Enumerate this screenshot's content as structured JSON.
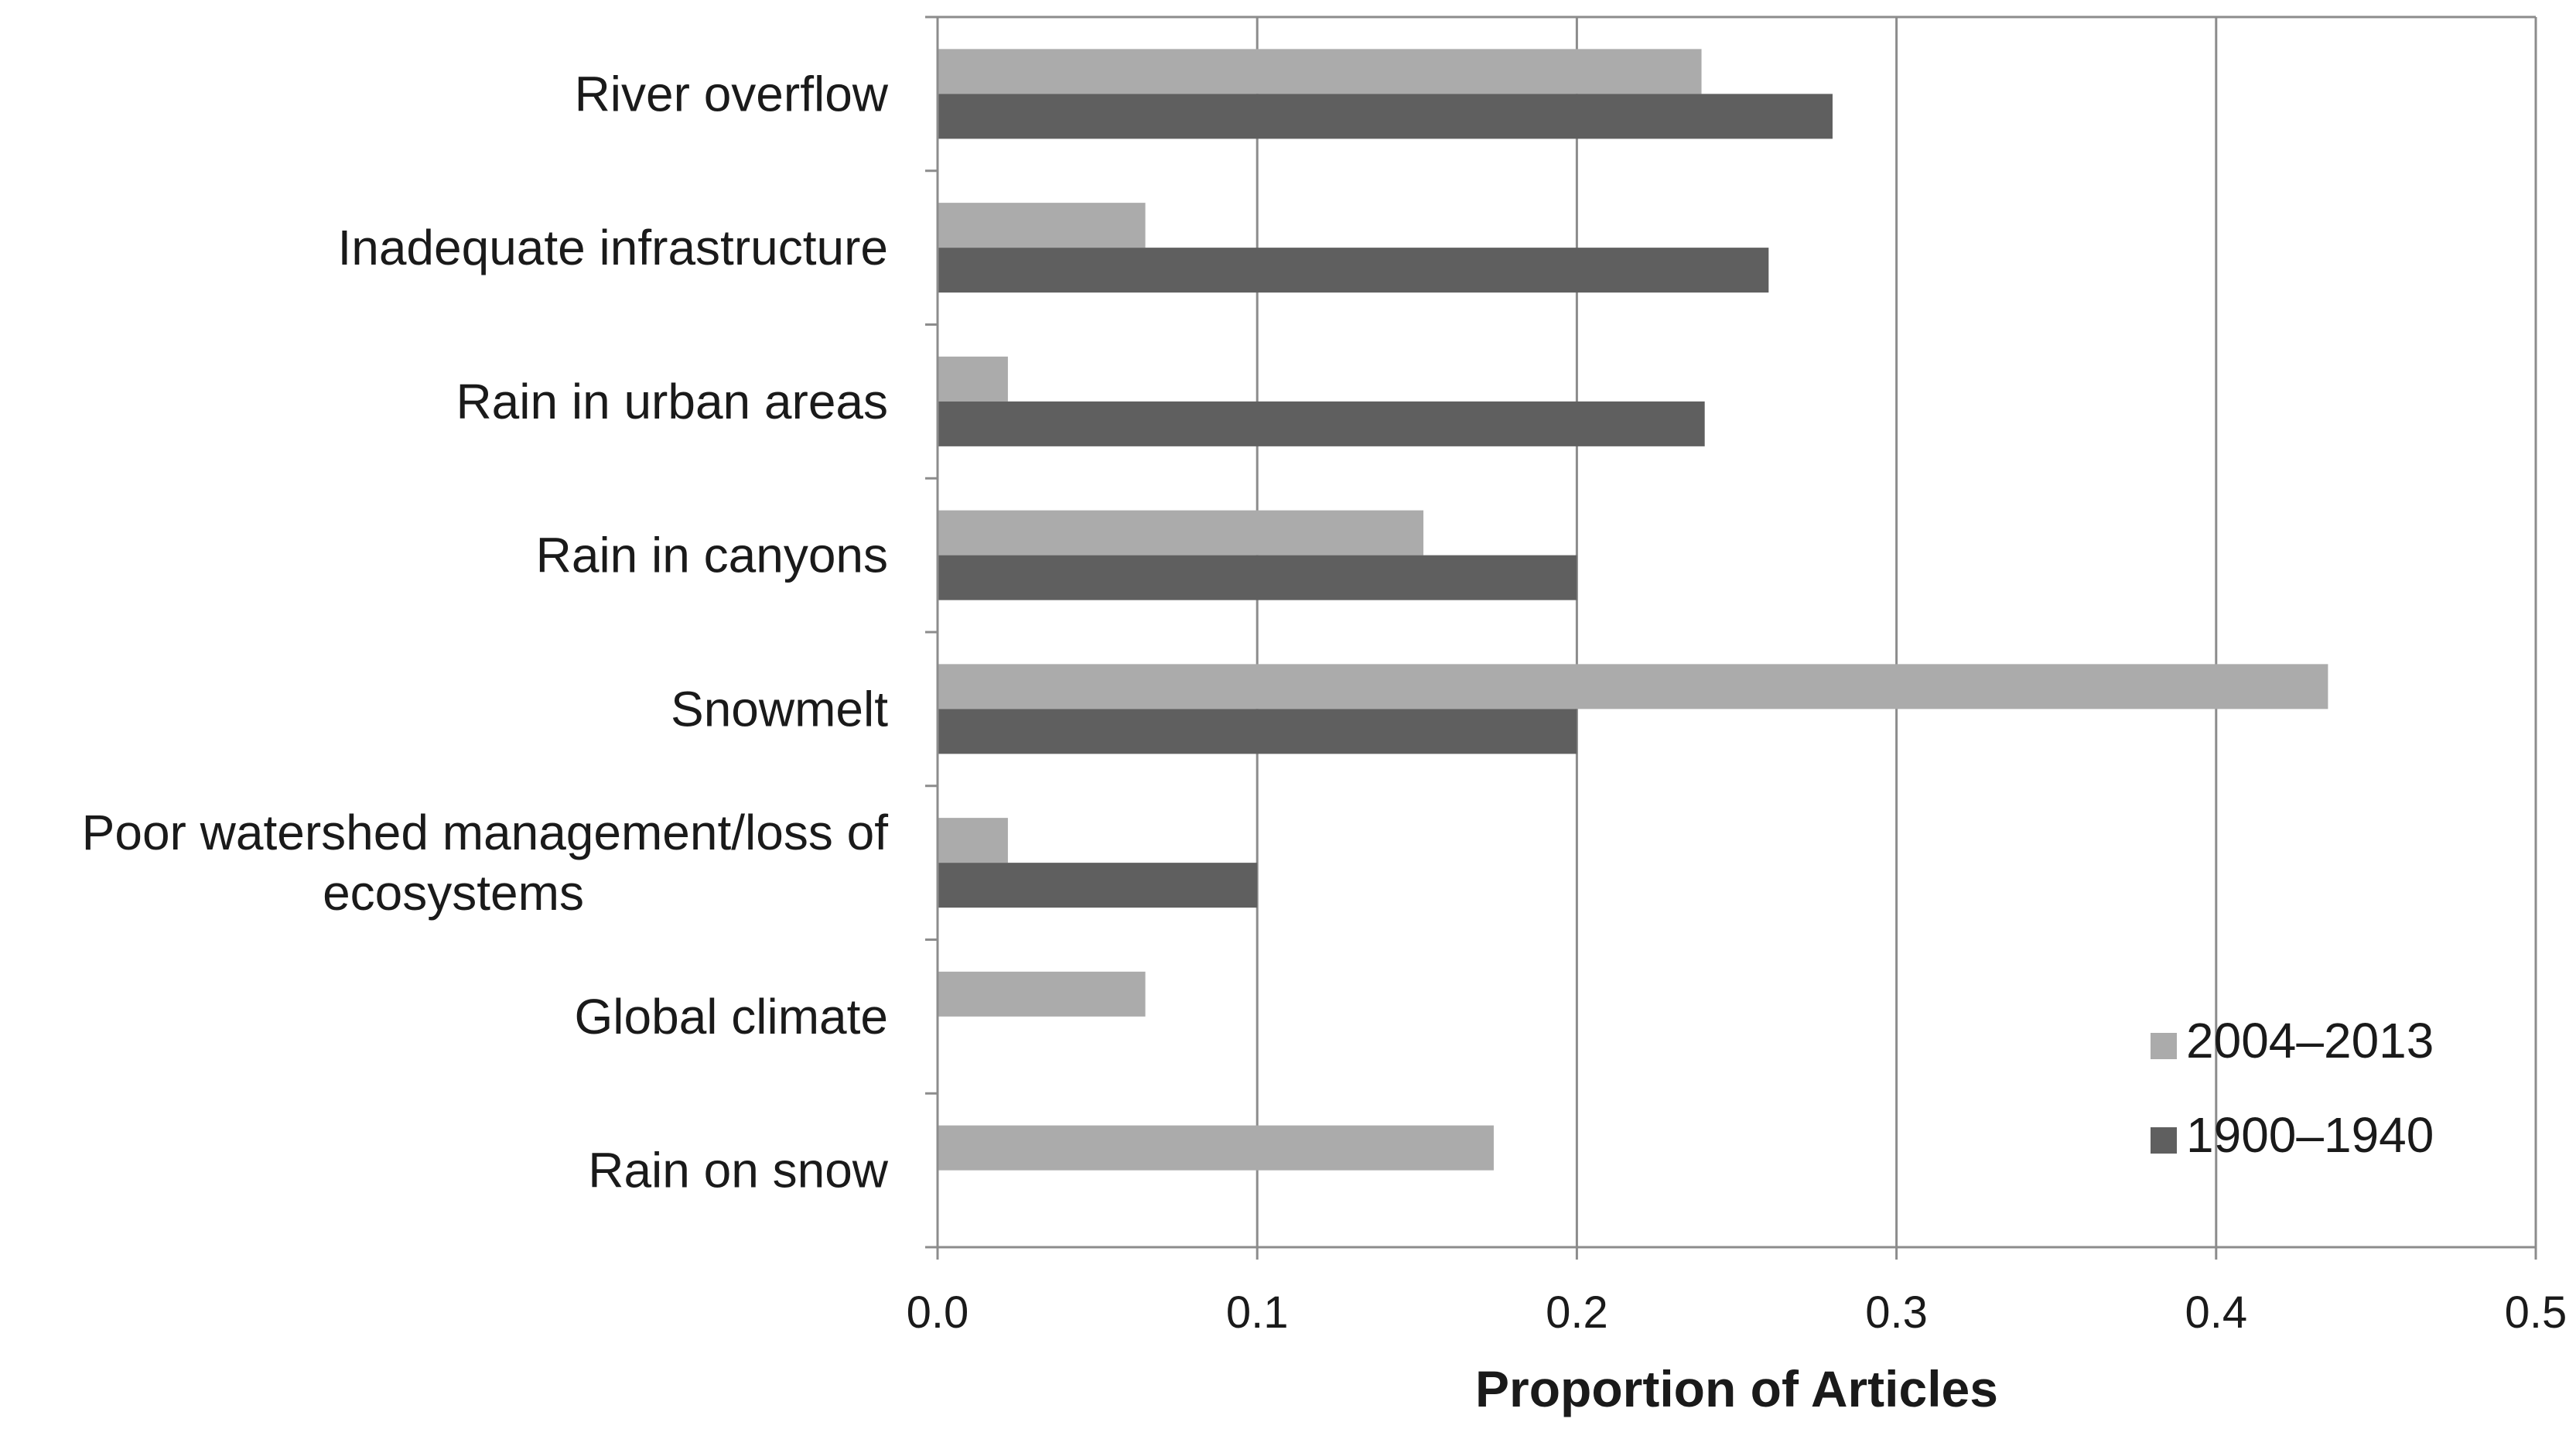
{
  "chart_data": {
    "type": "bar",
    "orientation": "horizontal",
    "categories": [
      "River overflow",
      "Inadequate infrastructure",
      "Rain in urban areas",
      "Rain in canyons",
      "Snowmelt",
      "Poor watershed management/loss of ecosystems",
      "Global climate",
      "Rain on snow"
    ],
    "category_label_lines": [
      [
        "River overflow"
      ],
      [
        "Inadequate infrastructure"
      ],
      [
        "Rain in urban areas"
      ],
      [
        "Rain in canyons"
      ],
      [
        "Snowmelt"
      ],
      [
        "Poor watershed management/loss of",
        "ecosystems"
      ],
      [
        "Global climate"
      ],
      [
        "Rain on snow"
      ]
    ],
    "series": [
      {
        "name": "2004–2013",
        "color": "#ababab",
        "values": [
          0.239,
          0.065,
          0.022,
          0.152,
          0.435,
          0.022,
          0.065,
          0.174
        ]
      },
      {
        "name": "1900–1940",
        "color": "#5f5f5f",
        "values": [
          0.28,
          0.26,
          0.24,
          0.2,
          0.2,
          0.1,
          0,
          0
        ]
      }
    ],
    "xlabel": "Proportion of Articles",
    "ylabel": "",
    "xlim": [
      0,
      0.5
    ],
    "xticks": [
      0,
      0.1,
      0.2,
      0.3,
      0.4,
      0.5
    ],
    "xtick_labels": [
      "0.0",
      "0.1",
      "0.2",
      "0.3",
      "0.4",
      "0.5"
    ],
    "grid": "vertical",
    "legend_position": "bottom-right",
    "plot_border_color": "#8c8c8c",
    "grid_color": "#8c8c8c",
    "axis_color": "#8c8c8c"
  }
}
